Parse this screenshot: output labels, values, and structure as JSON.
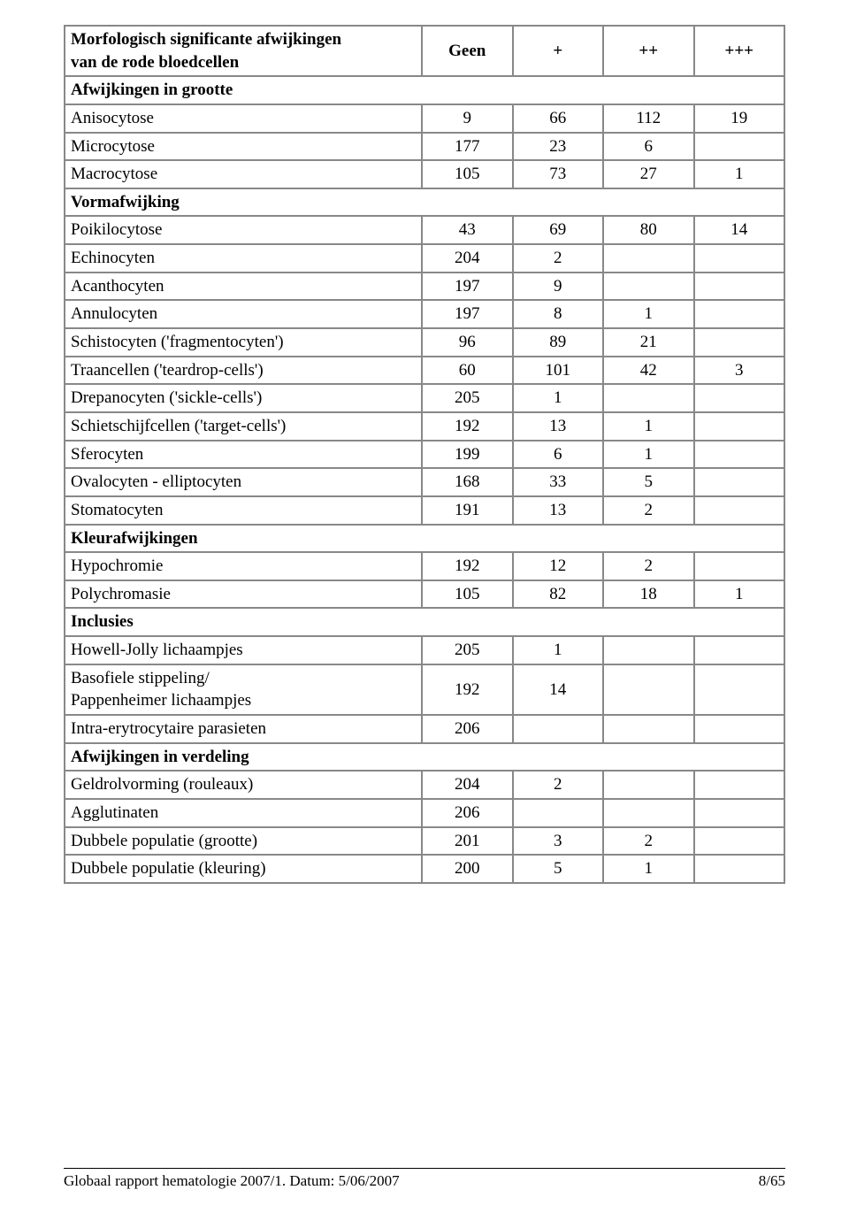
{
  "table": {
    "header_label_line1": "Morfologisch significante afwijkingen",
    "header_label_line2": "van de rode bloedcellen",
    "headers": [
      "Geen",
      "+",
      "++",
      "+++"
    ],
    "col_widths_pct": [
      50,
      12.5,
      12.5,
      12.5,
      12.5
    ],
    "border_color": "#888888",
    "background_color": "#ffffff",
    "font_size_pt": 14
  },
  "sections": [
    {
      "title": "Afwijkingen in grootte",
      "rows": [
        {
          "label": "Anisocytose",
          "v": [
            "9",
            "66",
            "112",
            "19"
          ]
        },
        {
          "label": "Microcytose",
          "v": [
            "177",
            "23",
            "6",
            ""
          ]
        },
        {
          "label": "Macrocytose",
          "v": [
            "105",
            "73",
            "27",
            "1"
          ]
        }
      ]
    },
    {
      "title": "Vormafwijking",
      "rows": [
        {
          "label": "Poikilocytose",
          "v": [
            "43",
            "69",
            "80",
            "14"
          ]
        },
        {
          "label": "Echinocyten",
          "v": [
            "204",
            "2",
            "",
            ""
          ]
        },
        {
          "label": "Acanthocyten",
          "v": [
            "197",
            "9",
            "",
            ""
          ]
        },
        {
          "label": "Annulocyten",
          "v": [
            "197",
            "8",
            "1",
            ""
          ]
        },
        {
          "label": "Schistocyten ('fragmentocyten')",
          "v": [
            "96",
            "89",
            "21",
            ""
          ]
        },
        {
          "label": "Traancellen ('teardrop-cells')",
          "v": [
            "60",
            "101",
            "42",
            "3"
          ]
        },
        {
          "label": "Drepanocyten ('sickle-cells')",
          "v": [
            "205",
            "1",
            "",
            ""
          ]
        },
        {
          "label": "Schietschijfcellen ('target-cells')",
          "v": [
            "192",
            "13",
            "1",
            ""
          ]
        },
        {
          "label": "Sferocyten",
          "v": [
            "199",
            "6",
            "1",
            ""
          ]
        },
        {
          "label": "Ovalocyten - elliptocyten",
          "v": [
            "168",
            "33",
            "5",
            ""
          ]
        },
        {
          "label": "Stomatocyten",
          "v": [
            "191",
            "13",
            "2",
            ""
          ]
        }
      ]
    },
    {
      "title": "Kleurafwijkingen",
      "rows": [
        {
          "label": "Hypochromie",
          "v": [
            "192",
            "12",
            "2",
            ""
          ]
        },
        {
          "label": "Polychromasie",
          "v": [
            "105",
            "82",
            "18",
            "1"
          ]
        }
      ]
    },
    {
      "title": "Inclusies",
      "rows": [
        {
          "label": "Howell-Jolly lichaampjes",
          "v": [
            "205",
            "1",
            "",
            ""
          ]
        },
        {
          "label_multiline": [
            "Basofiele stippeling/",
            "Pappenheimer lichaampjes"
          ],
          "v": [
            "192",
            "14",
            "",
            ""
          ]
        },
        {
          "label": "Intra-erytrocytaire parasieten",
          "v": [
            "206",
            "",
            "",
            ""
          ]
        }
      ]
    },
    {
      "title": "Afwijkingen in verdeling",
      "rows": [
        {
          "label": "Geldrolvorming (rouleaux)",
          "v": [
            "204",
            "2",
            "",
            ""
          ]
        },
        {
          "label": "Agglutinaten",
          "v": [
            "206",
            "",
            "",
            ""
          ]
        },
        {
          "label": "Dubbele populatie (grootte)",
          "v": [
            "201",
            "3",
            "2",
            ""
          ]
        },
        {
          "label": "Dubbele populatie (kleuring)",
          "v": [
            "200",
            "5",
            "1",
            ""
          ]
        }
      ]
    }
  ],
  "footer": {
    "left": "Globaal rapport hematologie 2007/1. Datum: 5/06/2007",
    "right": "8/65"
  }
}
